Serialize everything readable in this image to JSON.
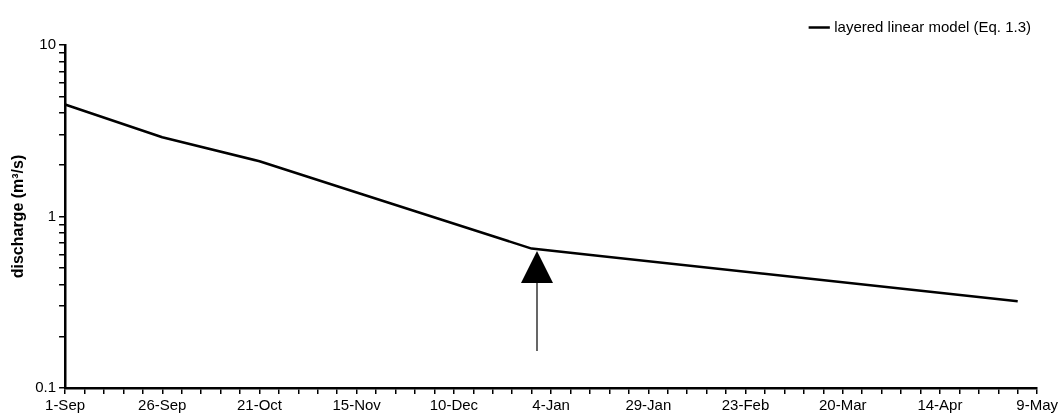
{
  "chart_data": {
    "type": "line",
    "ylabel": "discharge (m³/s)",
    "log": "y",
    "legend": "top right",
    "marker": "none",
    "line_style": "solid",
    "categories": [
      "1-Sep",
      null,
      null,
      null,
      null,
      "26-Sep",
      null,
      null,
      null,
      null,
      "21-Oct",
      null,
      null,
      null,
      null,
      "15-Nov",
      null,
      null,
      null,
      null,
      "10-Dec",
      null,
      null,
      null,
      null,
      "4-Jan",
      null,
      null,
      null,
      null,
      "29-Jan",
      null,
      null,
      null,
      null,
      "23-Feb",
      null,
      null,
      null,
      null,
      "20-Mar",
      null,
      null,
      null,
      null,
      "14-Apr",
      null,
      null,
      null,
      null,
      "9-May"
    ],
    "series": [
      {
        "name": "layered linear model (Eq. 1.3)",
        "color": "#000000",
        "values": [
          4.5,
          null,
          null,
          null,
          null,
          2.9,
          null,
          null,
          null,
          null,
          2.1,
          null,
          null,
          null,
          null,
          1.38,
          null,
          null,
          null,
          null,
          null,
          null,
          null,
          null,
          0.65,
          null,
          null,
          null,
          null,
          null,
          null,
          null,
          null,
          null,
          null,
          null,
          null,
          null,
          null,
          null,
          null,
          null,
          null,
          null,
          null,
          null,
          null,
          null,
          null,
          0.32,
          null
        ]
      }
    ],
    "ylim": [
      0.1,
      10
    ],
    "yticks": [
      0.1,
      {
        "value": 0.2,
        "label": null
      },
      {
        "value": 0.3,
        "label": null
      },
      {
        "value": 0.4,
        "label": null
      },
      {
        "value": 0.5,
        "label": null
      },
      {
        "value": 0.6,
        "label": null
      },
      {
        "value": 0.7,
        "label": null
      },
      {
        "value": 0.8,
        "label": null
      },
      {
        "value": 0.9,
        "label": null
      },
      1,
      {
        "value": 2,
        "label": null
      },
      {
        "value": 3,
        "label": null
      },
      {
        "value": 4,
        "label": null
      },
      {
        "value": 5,
        "label": null
      },
      {
        "value": 6,
        "label": null
      },
      {
        "value": 7,
        "label": null
      },
      {
        "value": 8,
        "label": null
      },
      {
        "value": 9,
        "label": null
      },
      10
    ],
    "grid": false
  }
}
